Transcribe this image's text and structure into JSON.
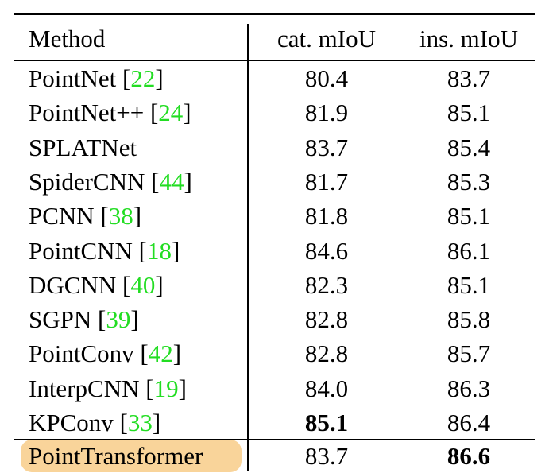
{
  "header": {
    "method": "Method",
    "cat": "cat. mIoU",
    "ins": "ins. mIoU"
  },
  "highlight_color": "#f9d49a",
  "ref_color": "#22dd22",
  "rows": [
    {
      "method": "PointNet",
      "ref": "22",
      "cat": "80.4",
      "ins": "83.7"
    },
    {
      "method": "PointNet++",
      "ref": "24",
      "cat": "81.9",
      "ins": "85.1"
    },
    {
      "method": "SPLATNet",
      "ref": "",
      "cat": "83.7",
      "ins": "85.4"
    },
    {
      "method": "SpiderCNN",
      "ref": "44",
      "cat": "81.7",
      "ins": "85.3"
    },
    {
      "method": "PCNN",
      "ref": "38",
      "cat": "81.8",
      "ins": "85.1"
    },
    {
      "method": "PointCNN",
      "ref": "18",
      "cat": "84.6",
      "ins": "86.1"
    },
    {
      "method": "DGCNN",
      "ref": "40",
      "cat": "82.3",
      "ins": "85.1"
    },
    {
      "method": "SGPN",
      "ref": "39",
      "cat": "82.8",
      "ins": "85.8"
    },
    {
      "method": "PointConv",
      "ref": "42",
      "cat": "82.8",
      "ins": "85.7"
    },
    {
      "method": "InterpCNN",
      "ref": "19",
      "cat": "84.0",
      "ins": "86.3"
    },
    {
      "method": "KPConv",
      "ref": "33",
      "cat": "85.1",
      "ins": "86.4",
      "bold": "cat"
    }
  ],
  "final_row": {
    "method": "PointTransformer",
    "cat": "83.7",
    "ins": "86.6",
    "bold": "ins",
    "highlighted": true
  }
}
